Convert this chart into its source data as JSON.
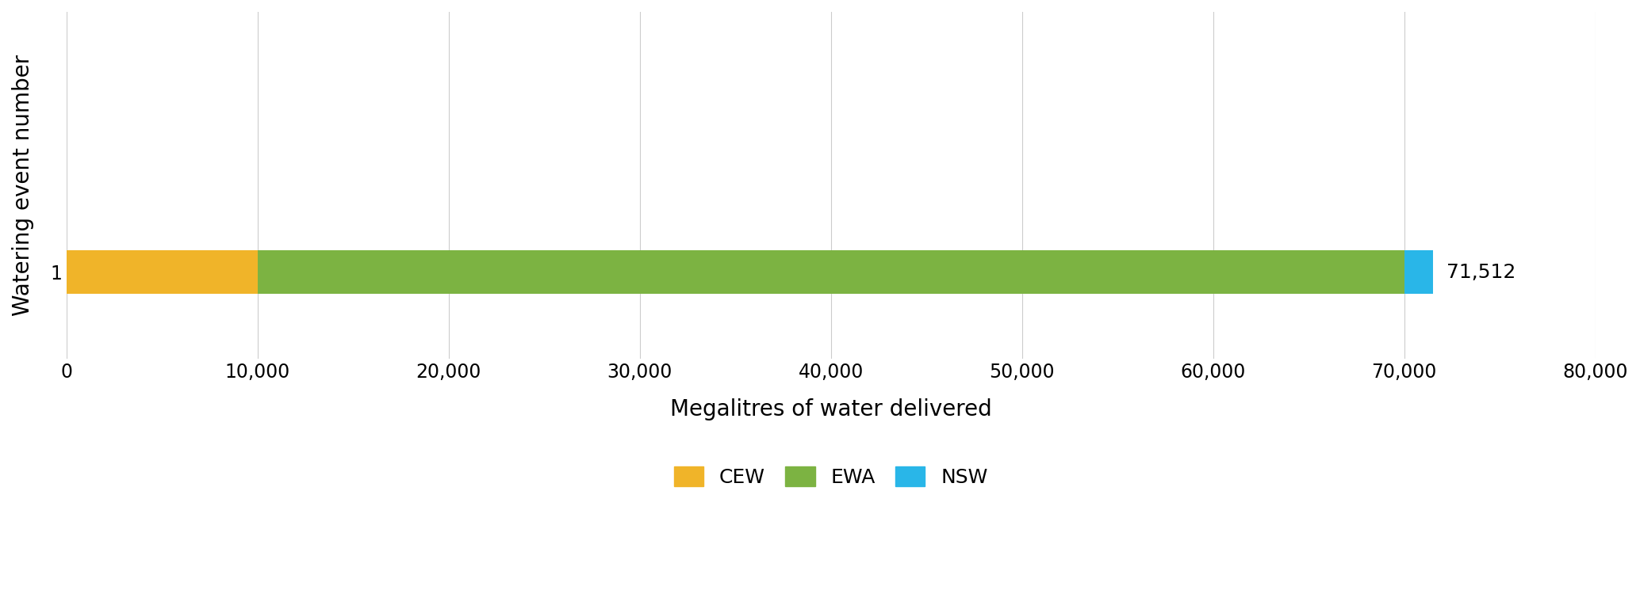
{
  "categories": [
    "1"
  ],
  "segments": [
    {
      "label": "CEW",
      "value": 10000,
      "color": "#F0B429"
    },
    {
      "label": "EWA",
      "value": 60000,
      "color": "#7CB342"
    },
    {
      "label": "NSW",
      "value": 1512,
      "color": "#29B6E8"
    }
  ],
  "total_label": "71,512",
  "total_value": 71512,
  "xlabel": "Megalitres of water delivered",
  "ylabel": "Watering event number",
  "xlim": [
    0,
    80000
  ],
  "xticks": [
    0,
    10000,
    20000,
    30000,
    40000,
    50000,
    60000,
    70000,
    80000
  ],
  "xtick_labels": [
    "0",
    "10,000",
    "20,000",
    "30,000",
    "40,000",
    "50,000",
    "60,000",
    "70,000",
    "80,000"
  ],
  "background_color": "#ffffff",
  "bar_height": 0.25,
  "bar_y": 1,
  "ylim": [
    0.5,
    2.5
  ],
  "grid_color": "#cccccc",
  "annotation_fontsize": 18,
  "axis_label_fontsize": 20,
  "tick_fontsize": 17,
  "legend_fontsize": 18
}
